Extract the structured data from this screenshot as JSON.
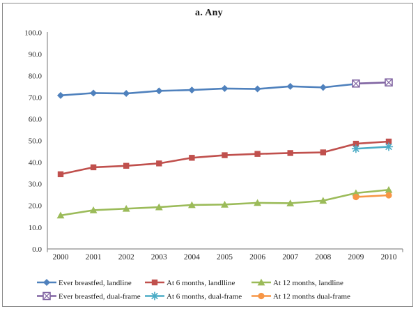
{
  "figure": {
    "title": "a. Any"
  },
  "chart_data": {
    "type": "line",
    "title": "a. Any",
    "x": [
      2000,
      2001,
      2002,
      2003,
      2004,
      2005,
      2006,
      2007,
      2008,
      2009,
      2010
    ],
    "xlabel": "",
    "ylabel": "",
    "ylim": [
      0,
      100
    ],
    "ytick_step": 10,
    "ytick_format": "0.0",
    "grid": false,
    "legend_position": "bottom",
    "legend_rows": 2,
    "legend_columns": 3,
    "axis_color": "#8c8c8c",
    "text_color": "#262626",
    "series": [
      {
        "name": "Ever breastfed, landline",
        "color": "#4F81BD",
        "marker": "diamond",
        "x": [
          2000,
          2001,
          2002,
          2003,
          2004,
          2005,
          2006,
          2007,
          2008,
          2009
        ],
        "values": [
          70.9,
          72.0,
          71.8,
          73.0,
          73.4,
          74.1,
          73.9,
          75.1,
          74.6,
          76.2
        ]
      },
      {
        "name": "At 6 months, landlline",
        "color": "#C0504D",
        "marker": "square",
        "x": [
          2000,
          2001,
          2002,
          2003,
          2004,
          2005,
          2006,
          2007,
          2008,
          2009,
          2010
        ],
        "values": [
          34.5,
          37.7,
          38.4,
          39.5,
          42.1,
          43.3,
          43.9,
          44.3,
          44.6,
          48.6,
          49.6
        ]
      },
      {
        "name": "At 12 months, landline",
        "color": "#9BBB59",
        "marker": "triangle",
        "x": [
          2000,
          2001,
          2002,
          2003,
          2004,
          2005,
          2006,
          2007,
          2008,
          2009,
          2010
        ],
        "values": [
          15.5,
          17.9,
          18.6,
          19.3,
          20.3,
          20.5,
          21.3,
          21.1,
          22.3,
          25.8,
          27.3
        ]
      },
      {
        "name": "Ever breastfed, dual-frame",
        "color": "#8064A2",
        "marker": "boxed-x",
        "x": [
          2009,
          2010
        ],
        "values": [
          76.4,
          76.9
        ]
      },
      {
        "name": "At 6 months, dual-frame",
        "color": "#4BACC6",
        "marker": "asterisk",
        "x": [
          2009,
          2010
        ],
        "values": [
          46.3,
          47.2
        ]
      },
      {
        "name": "At 12 months dual-frame",
        "color": "#F79646",
        "marker": "circle",
        "x": [
          2009,
          2010
        ],
        "values": [
          24.0,
          24.8
        ]
      }
    ]
  }
}
